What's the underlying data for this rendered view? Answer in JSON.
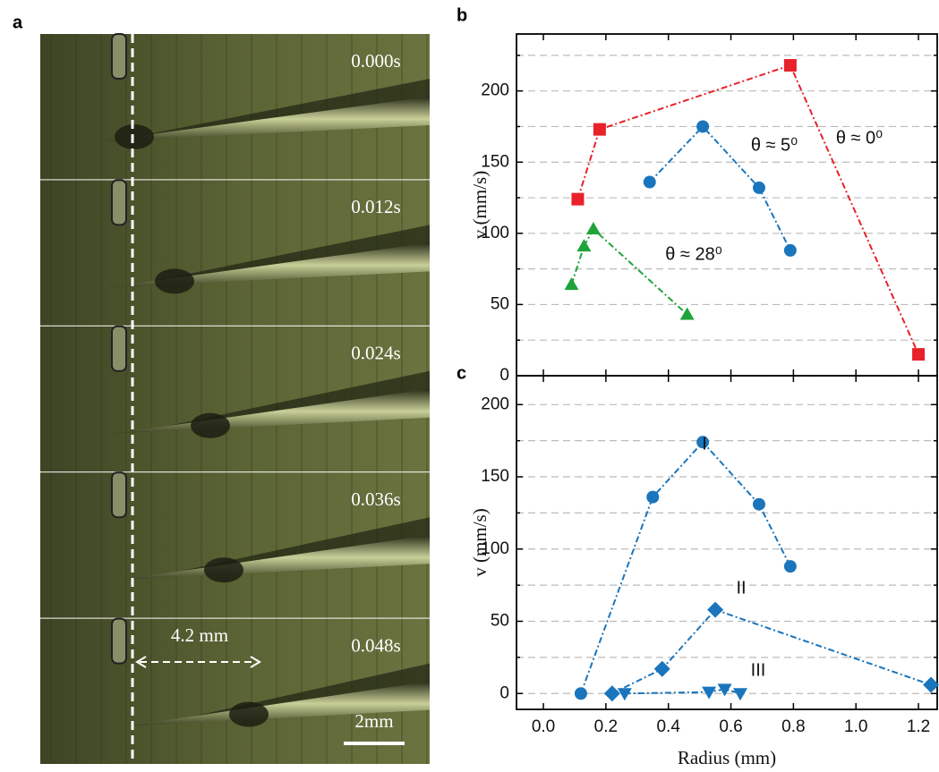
{
  "panel_labels": [
    "a",
    "b",
    "c"
  ],
  "photo": {
    "timestamps": [
      "0.000s",
      "0.012s",
      "0.024s",
      "0.036s",
      "0.048s"
    ],
    "distance": "4.2 mm",
    "scale_bar": "2mm"
  },
  "chart_data": [
    {
      "type": "line",
      "ylabel": "v (mm/s)",
      "xlim": [
        -0.086,
        1.26
      ],
      "xticks": [
        0,
        0.2,
        0.4,
        0.6,
        0.8,
        1,
        1.2
      ],
      "show_xtick_labels": false,
      "ylim": [
        0,
        240
      ],
      "yticks": [
        0,
        50,
        100,
        150,
        200
      ],
      "yminor": [
        25,
        75,
        125,
        175,
        225
      ],
      "grid": true,
      "series": [
        {
          "name": "θ ≈ 0⁰",
          "color": "#e8212a",
          "marker": "square",
          "x": [
            0.11,
            0.18,
            0.79,
            1.2
          ],
          "values": [
            124,
            173,
            218,
            15
          ]
        },
        {
          "name": "θ ≈ 5⁰",
          "color": "#1a75bc",
          "marker": "circle",
          "x": [
            0.34,
            0.51,
            0.69,
            0.79
          ],
          "values": [
            136,
            175,
            132,
            88
          ]
        },
        {
          "name": "θ ≈ 28⁰",
          "color": "#1fa33a",
          "marker": "triangle",
          "x": [
            0.09,
            0.13,
            0.16,
            0.46
          ],
          "values": [
            64,
            91,
            103,
            43
          ]
        }
      ]
    },
    {
      "type": "line",
      "ylabel": "v (mm/s)",
      "xlabel": "Radius (mm)",
      "xlim": [
        -0.086,
        1.26
      ],
      "xticks": [
        {
          "value": 0,
          "label": "0.0"
        },
        0.2,
        0.4,
        0.6,
        0.8,
        {
          "value": 1,
          "label": "1.0"
        },
        1.2
      ],
      "show_xtick_labels": true,
      "ylim": [
        -11,
        220
      ],
      "yticks": [
        0,
        50,
        100,
        150,
        200
      ],
      "yminor": [
        25,
        75,
        125,
        175
      ],
      "grid": true,
      "series": [
        {
          "name": "I",
          "color": "#1a75bc",
          "marker": "circle",
          "x": [
            0.12,
            0.35,
            0.51,
            0.69,
            0.79
          ],
          "values": [
            0,
            136,
            174,
            131,
            88
          ]
        },
        {
          "name": "II",
          "color": "#1a75bc",
          "marker": "diamond",
          "x": [
            0.22,
            0.38,
            0.55,
            1.24
          ],
          "values": [
            0,
            17,
            58,
            6
          ]
        },
        {
          "name": "III",
          "color": "#1a75bc",
          "marker": "triangle-down",
          "x": [
            0.26,
            0.53,
            0.58,
            0.63
          ],
          "values": [
            0,
            1,
            3,
            0
          ]
        }
      ]
    }
  ]
}
